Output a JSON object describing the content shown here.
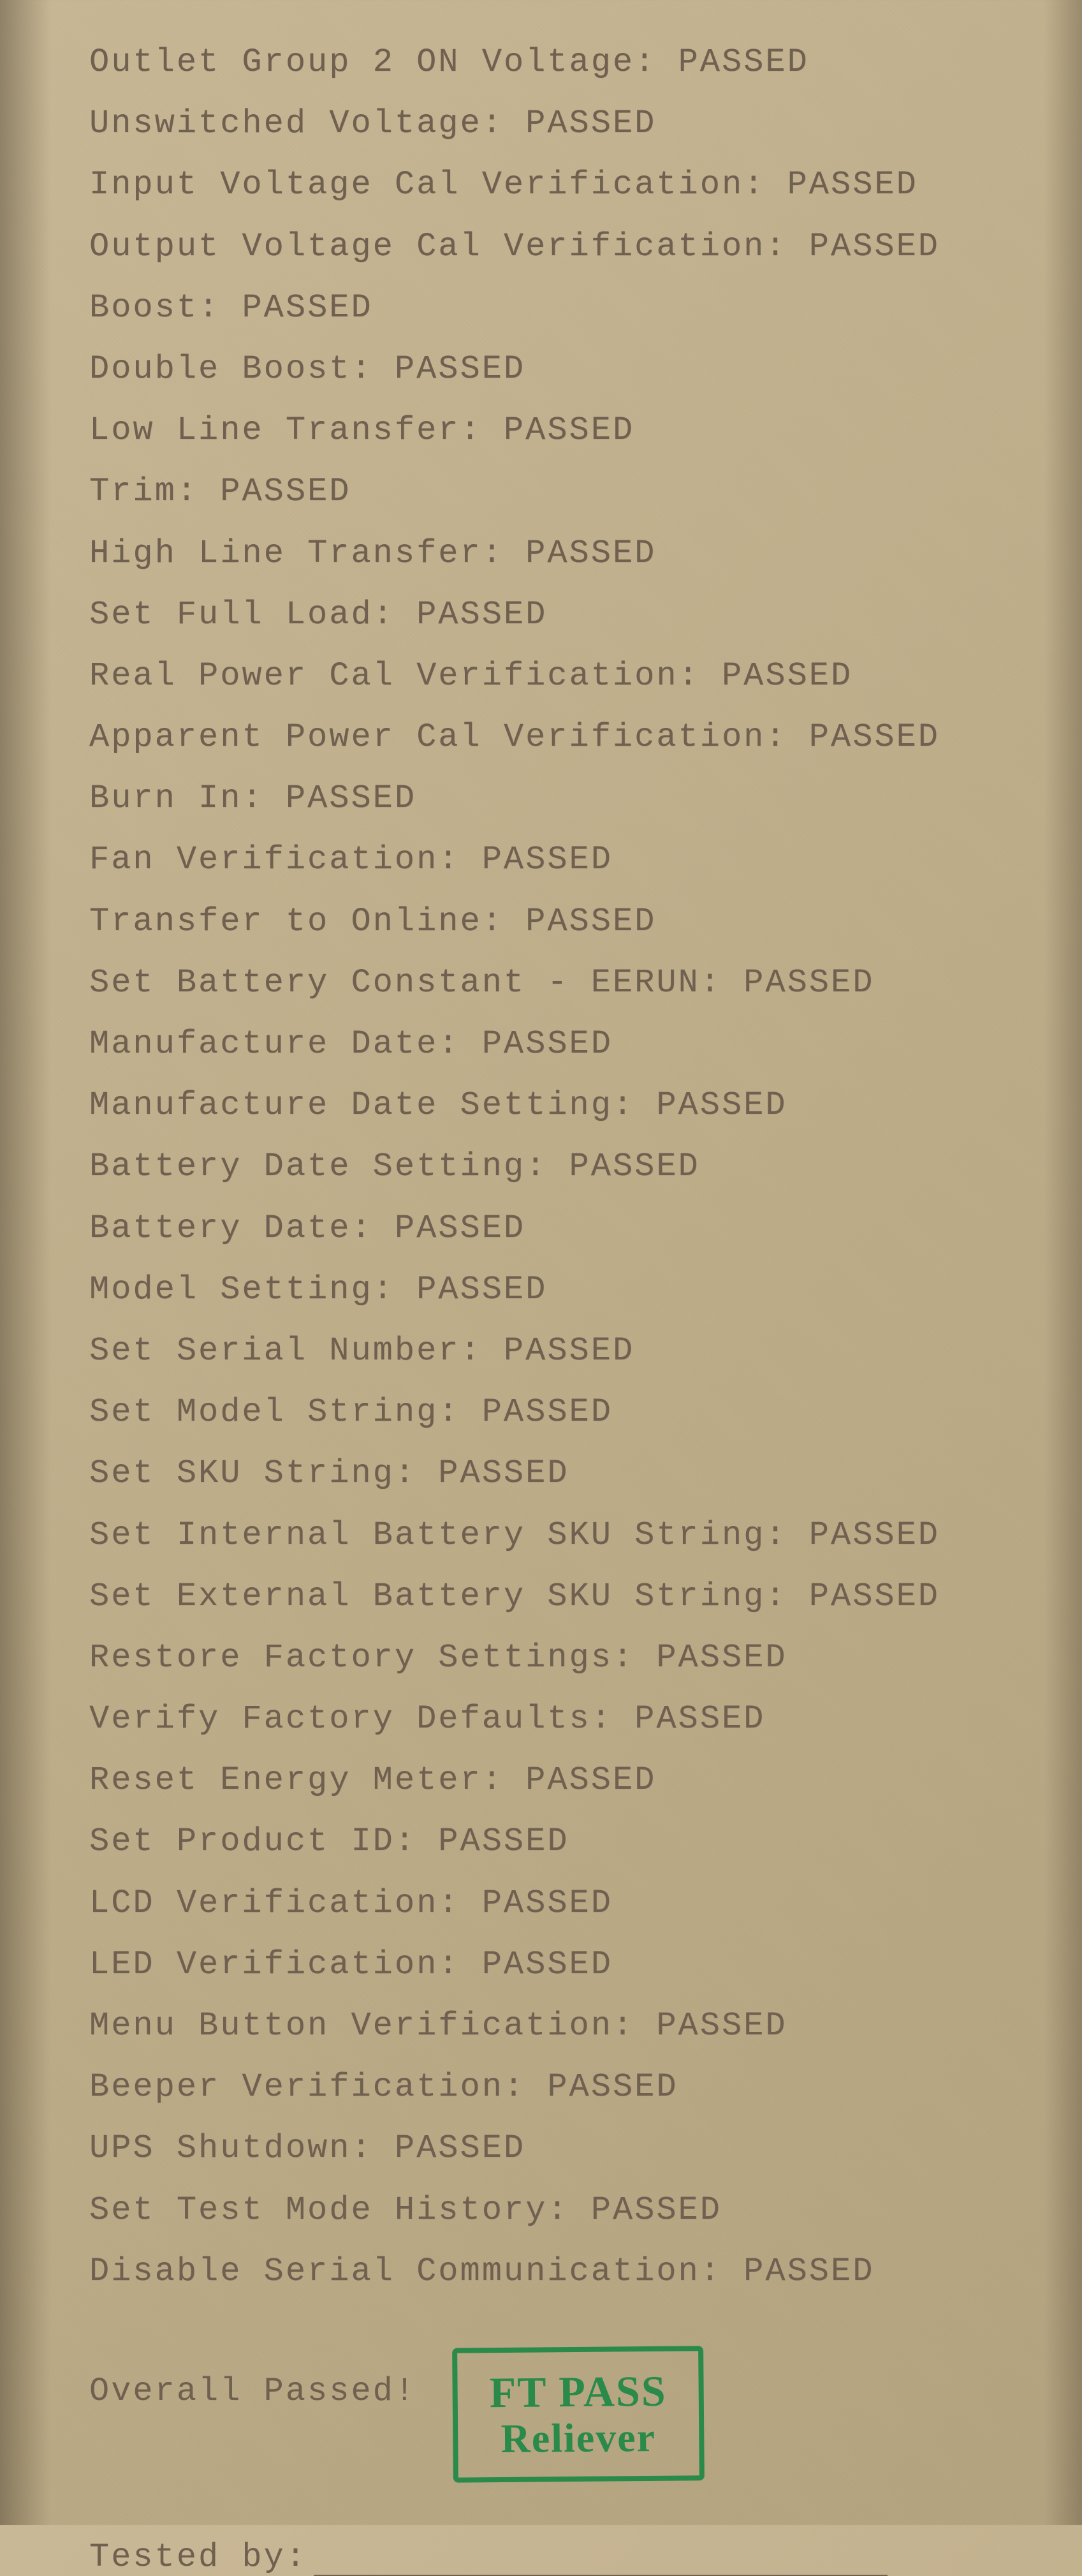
{
  "tests": [
    {
      "label": "Outlet Group 2 ON Voltage",
      "result": "PASSED"
    },
    {
      "label": "Unswitched Voltage",
      "result": "PASSED"
    },
    {
      "label": "Input Voltage Cal Verification",
      "result": "PASSED"
    },
    {
      "label": "Output Voltage Cal Verification",
      "result": "PASSED"
    },
    {
      "label": "Boost",
      "result": "PASSED"
    },
    {
      "label": "Double Boost",
      "result": "PASSED"
    },
    {
      "label": "Low Line Transfer",
      "result": "PASSED"
    },
    {
      "label": "Trim",
      "result": "PASSED"
    },
    {
      "label": "High Line Transfer",
      "result": "PASSED"
    },
    {
      "label": "Set Full Load",
      "result": "PASSED"
    },
    {
      "label": "Real Power Cal Verification",
      "result": "PASSED"
    },
    {
      "label": "Apparent Power Cal Verification",
      "result": "PASSED"
    },
    {
      "label": "Burn In",
      "result": "PASSED"
    },
    {
      "label": "Fan Verification",
      "result": "PASSED"
    },
    {
      "label": "Transfer to Online",
      "result": "PASSED"
    },
    {
      "label": "Set Battery Constant - EERUN",
      "result": "PASSED"
    },
    {
      "label": "Manufacture Date",
      "result": "PASSED"
    },
    {
      "label": "Manufacture Date Setting",
      "result": "PASSED"
    },
    {
      "label": "Battery Date Setting",
      "result": "PASSED"
    },
    {
      "label": "Battery Date",
      "result": "PASSED"
    },
    {
      "label": "Model Setting",
      "result": "PASSED"
    },
    {
      "label": "Set Serial Number",
      "result": "PASSED"
    },
    {
      "label": "Set Model String",
      "result": "PASSED"
    },
    {
      "label": "Set SKU String",
      "result": "PASSED"
    },
    {
      "label": "Set Internal Battery SKU String",
      "result": "PASSED"
    },
    {
      "label": "Set External Battery SKU String",
      "result": "PASSED"
    },
    {
      "label": "Restore Factory Settings",
      "result": "PASSED"
    },
    {
      "label": "Verify Factory Defaults",
      "result": "PASSED"
    },
    {
      "label": "Reset Energy Meter",
      "result": "PASSED"
    },
    {
      "label": "Set Product ID",
      "result": "PASSED"
    },
    {
      "label": "LCD Verification",
      "result": "PASSED"
    },
    {
      "label": "LED Verification",
      "result": "PASSED"
    },
    {
      "label": "Menu Button Verification",
      "result": "PASSED"
    },
    {
      "label": "Beeper Verification",
      "result": "PASSED"
    },
    {
      "label": "UPS Shutdown",
      "result": "PASSED"
    },
    {
      "label": "Set Test Mode History",
      "result": "PASSED"
    },
    {
      "label": "Disable Serial Communication",
      "result": "PASSED"
    }
  ],
  "overall": {
    "label": "Overall Passed!"
  },
  "stamp": {
    "line1": "FT PASS",
    "line2": "Reliever",
    "border_color": "#2a8a4a",
    "text_color": "#2a8a4a"
  },
  "tested_by": {
    "label": "Tested by:"
  },
  "style": {
    "text_color": "#706050",
    "background_start": "#c9b896",
    "background_end": "#b5a480",
    "font_size": 52,
    "letter_spacing": 3
  }
}
